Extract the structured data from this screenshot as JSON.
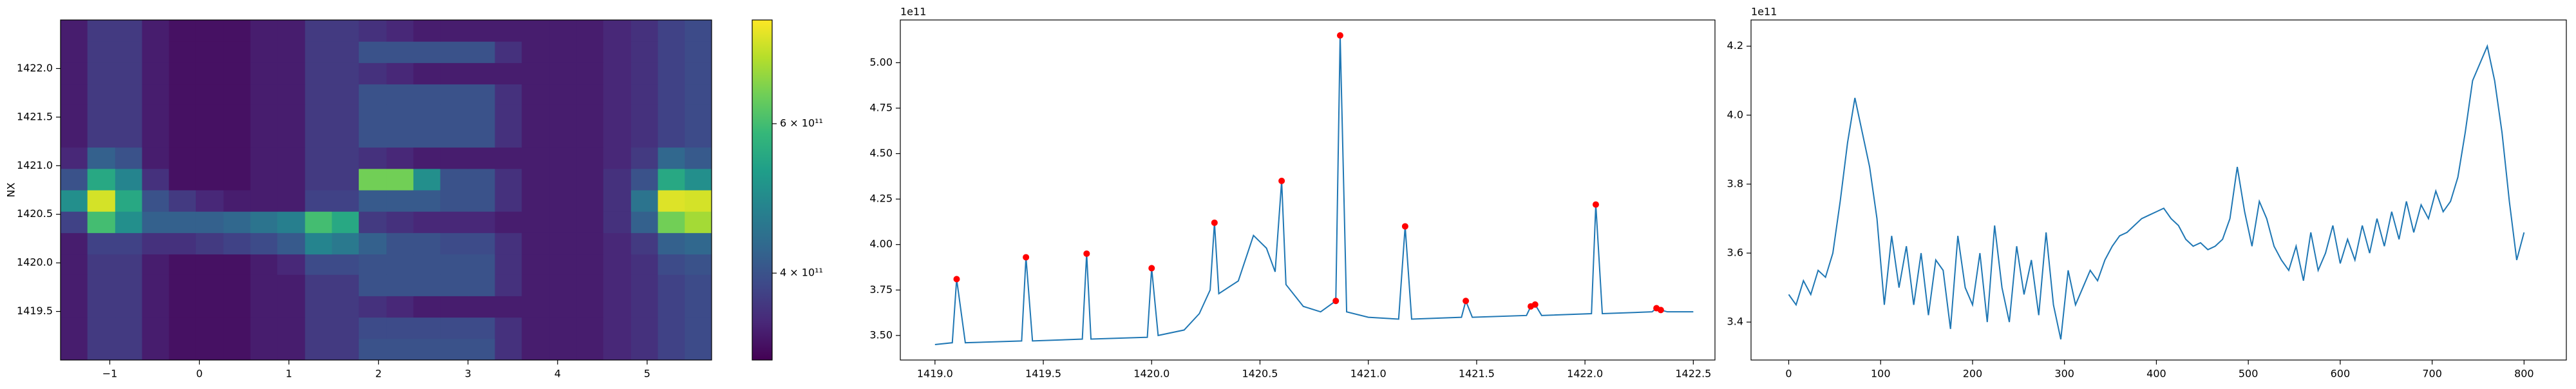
{
  "chart_data": [
    {
      "type": "heatmap",
      "ylabel": "NX",
      "colormap": "viridis",
      "log_color": true,
      "xlim": [
        -1.55,
        5.72
      ],
      "ylim": [
        1419.0,
        1422.5
      ],
      "xticks": [
        {
          "value": -1,
          "label": "−1"
        },
        0,
        1,
        2,
        3,
        4,
        5
      ],
      "yticks": [
        1419.5,
        {
          "value": 1420,
          "label": "1420.0"
        },
        1420.5,
        {
          "value": 1421,
          "label": "1421.0"
        },
        1421.5,
        {
          "value": 1422,
          "label": "1422.0"
        }
      ],
      "clim": [
        316000000000.0,
        795000000000.0
      ],
      "cticks": [
        {
          "value": 400000000000.0,
          "label": "4 × 10¹¹"
        },
        {
          "value": 600000000000.0,
          "label": "6 × 10¹¹"
        }
      ],
      "x_edges": [
        -1.55,
        -1.25,
        -0.94,
        -0.64,
        -0.34,
        -0.04,
        0.27,
        0.57,
        0.87,
        1.18,
        1.48,
        1.78,
        2.09,
        2.39,
        2.69,
        3.0,
        3.3,
        3.6,
        3.91,
        4.21,
        4.51,
        4.82,
        5.12,
        5.42,
        5.72
      ],
      "y_edges": [
        1419.0,
        1419.22,
        1419.44,
        1419.66,
        1419.88,
        1420.09,
        1420.31,
        1420.53,
        1420.75,
        1420.97,
        1421.19,
        1421.41,
        1421.63,
        1421.84,
        1422.06,
        1422.28,
        1422.5
      ],
      "z": [
        [
          340000000000.0,
          370000000000.0,
          370000000000.0,
          340000000000.0,
          330000000000.0,
          330000000000.0,
          330000000000.0,
          340000000000.0,
          340000000000.0,
          370000000000.0,
          370000000000.0,
          400000000000.0,
          400000000000.0,
          400000000000.0,
          400000000000.0,
          400000000000.0,
          360000000000.0,
          340000000000.0,
          340000000000.0,
          340000000000.0,
          350000000000.0,
          360000000000.0,
          380000000000.0,
          390000000000.0
        ],
        [
          340000000000.0,
          370000000000.0,
          370000000000.0,
          340000000000.0,
          330000000000.0,
          330000000000.0,
          330000000000.0,
          340000000000.0,
          340000000000.0,
          370000000000.0,
          370000000000.0,
          390000000000.0,
          390000000000.0,
          390000000000.0,
          390000000000.0,
          390000000000.0,
          360000000000.0,
          340000000000.0,
          340000000000.0,
          340000000000.0,
          350000000000.0,
          360000000000.0,
          380000000000.0,
          390000000000.0
        ],
        [
          340000000000.0,
          370000000000.0,
          370000000000.0,
          340000000000.0,
          330000000000.0,
          330000000000.0,
          330000000000.0,
          340000000000.0,
          340000000000.0,
          370000000000.0,
          370000000000.0,
          360000000000.0,
          350000000000.0,
          340000000000.0,
          340000000000.0,
          340000000000.0,
          340000000000.0,
          340000000000.0,
          340000000000.0,
          340000000000.0,
          350000000000.0,
          360000000000.0,
          380000000000.0,
          390000000000.0
        ],
        [
          340000000000.0,
          370000000000.0,
          370000000000.0,
          340000000000.0,
          330000000000.0,
          330000000000.0,
          330000000000.0,
          340000000000.0,
          340000000000.0,
          370000000000.0,
          370000000000.0,
          400000000000.0,
          400000000000.0,
          400000000000.0,
          400000000000.0,
          400000000000.0,
          360000000000.0,
          340000000000.0,
          340000000000.0,
          340000000000.0,
          350000000000.0,
          360000000000.0,
          380000000000.0,
          390000000000.0
        ],
        [
          340000000000.0,
          370000000000.0,
          370000000000.0,
          340000000000.0,
          330000000000.0,
          330000000000.0,
          330000000000.0,
          340000000000.0,
          350000000000.0,
          390000000000.0,
          390000000000.0,
          400000000000.0,
          400000000000.0,
          400000000000.0,
          400000000000.0,
          400000000000.0,
          360000000000.0,
          340000000000.0,
          340000000000.0,
          340000000000.0,
          350000000000.0,
          360000000000.0,
          390000000000.0,
          400000000000.0
        ],
        [
          340000000000.0,
          380000000000.0,
          380000000000.0,
          360000000000.0,
          360000000000.0,
          370000000000.0,
          380000000000.0,
          390000000000.0,
          410000000000.0,
          480000000000.0,
          460000000000.0,
          420000000000.0,
          400000000000.0,
          400000000000.0,
          390000000000.0,
          390000000000.0,
          360000000000.0,
          340000000000.0,
          340000000000.0,
          340000000000.0,
          350000000000.0,
          370000000000.0,
          420000000000.0,
          430000000000.0
        ],
        [
          380000000000.0,
          600000000000.0,
          500000000000.0,
          420000000000.0,
          420000000000.0,
          420000000000.0,
          430000000000.0,
          450000000000.0,
          470000000000.0,
          600000000000.0,
          550000000000.0,
          370000000000.0,
          360000000000.0,
          350000000000.0,
          350000000000.0,
          350000000000.0,
          340000000000.0,
          340000000000.0,
          340000000000.0,
          340000000000.0,
          360000000000.0,
          420000000000.0,
          650000000000.0,
          700000000000.0
        ],
        [
          500000000000.0,
          750000000000.0,
          550000000000.0,
          400000000000.0,
          370000000000.0,
          350000000000.0,
          340000000000.0,
          340000000000.0,
          340000000000.0,
          380000000000.0,
          380000000000.0,
          410000000000.0,
          410000000000.0,
          410000000000.0,
          400000000000.0,
          400000000000.0,
          360000000000.0,
          340000000000.0,
          340000000000.0,
          340000000000.0,
          360000000000.0,
          450000000000.0,
          760000000000.0,
          750000000000.0
        ],
        [
          400000000000.0,
          550000000000.0,
          480000000000.0,
          360000000000.0,
          330000000000.0,
          330000000000.0,
          330000000000.0,
          340000000000.0,
          340000000000.0,
          370000000000.0,
          370000000000.0,
          650000000000.0,
          650000000000.0,
          500000000000.0,
          400000000000.0,
          400000000000.0,
          360000000000.0,
          340000000000.0,
          340000000000.0,
          340000000000.0,
          360000000000.0,
          400000000000.0,
          550000000000.0,
          500000000000.0
        ],
        [
          350000000000.0,
          420000000000.0,
          400000000000.0,
          340000000000.0,
          330000000000.0,
          330000000000.0,
          330000000000.0,
          340000000000.0,
          340000000000.0,
          370000000000.0,
          370000000000.0,
          360000000000.0,
          350000000000.0,
          340000000000.0,
          340000000000.0,
          340000000000.0,
          340000000000.0,
          340000000000.0,
          340000000000.0,
          340000000000.0,
          350000000000.0,
          370000000000.0,
          430000000000.0,
          410000000000.0
        ],
        [
          340000000000.0,
          370000000000.0,
          370000000000.0,
          340000000000.0,
          330000000000.0,
          330000000000.0,
          330000000000.0,
          340000000000.0,
          340000000000.0,
          370000000000.0,
          370000000000.0,
          400000000000.0,
          400000000000.0,
          400000000000.0,
          400000000000.0,
          400000000000.0,
          360000000000.0,
          340000000000.0,
          340000000000.0,
          340000000000.0,
          350000000000.0,
          360000000000.0,
          380000000000.0,
          390000000000.0
        ],
        [
          340000000000.0,
          370000000000.0,
          370000000000.0,
          340000000000.0,
          330000000000.0,
          330000000000.0,
          330000000000.0,
          340000000000.0,
          340000000000.0,
          370000000000.0,
          370000000000.0,
          400000000000.0,
          400000000000.0,
          400000000000.0,
          400000000000.0,
          400000000000.0,
          360000000000.0,
          340000000000.0,
          340000000000.0,
          340000000000.0,
          350000000000.0,
          360000000000.0,
          380000000000.0,
          390000000000.0
        ],
        [
          340000000000.0,
          370000000000.0,
          370000000000.0,
          340000000000.0,
          330000000000.0,
          330000000000.0,
          330000000000.0,
          340000000000.0,
          340000000000.0,
          370000000000.0,
          370000000000.0,
          400000000000.0,
          400000000000.0,
          400000000000.0,
          400000000000.0,
          400000000000.0,
          360000000000.0,
          340000000000.0,
          340000000000.0,
          340000000000.0,
          350000000000.0,
          360000000000.0,
          380000000000.0,
          390000000000.0
        ],
        [
          340000000000.0,
          370000000000.0,
          370000000000.0,
          340000000000.0,
          330000000000.0,
          330000000000.0,
          330000000000.0,
          340000000000.0,
          340000000000.0,
          370000000000.0,
          370000000000.0,
          360000000000.0,
          350000000000.0,
          340000000000.0,
          340000000000.0,
          340000000000.0,
          340000000000.0,
          340000000000.0,
          340000000000.0,
          340000000000.0,
          350000000000.0,
          360000000000.0,
          380000000000.0,
          390000000000.0
        ],
        [
          340000000000.0,
          370000000000.0,
          370000000000.0,
          340000000000.0,
          330000000000.0,
          330000000000.0,
          330000000000.0,
          340000000000.0,
          340000000000.0,
          370000000000.0,
          370000000000.0,
          400000000000.0,
          400000000000.0,
          400000000000.0,
          400000000000.0,
          400000000000.0,
          360000000000.0,
          340000000000.0,
          340000000000.0,
          340000000000.0,
          350000000000.0,
          360000000000.0,
          380000000000.0,
          390000000000.0
        ],
        [
          340000000000.0,
          370000000000.0,
          370000000000.0,
          340000000000.0,
          330000000000.0,
          330000000000.0,
          330000000000.0,
          340000000000.0,
          340000000000.0,
          370000000000.0,
          370000000000.0,
          360000000000.0,
          350000000000.0,
          340000000000.0,
          340000000000.0,
          340000000000.0,
          340000000000.0,
          340000000000.0,
          340000000000.0,
          340000000000.0,
          350000000000.0,
          360000000000.0,
          380000000000.0,
          390000000000.0
        ]
      ]
    },
    {
      "type": "line",
      "offset_text": "1e11",
      "color": "#1f77b4",
      "xlim": [
        1418.84,
        1422.6
      ],
      "ylim": [
        3.365,
        5.235
      ],
      "xticks": [
        {
          "value": 1419,
          "label": "1419.0"
        },
        1419.5,
        {
          "value": 1420,
          "label": "1420.0"
        },
        1420.5,
        {
          "value": 1421,
          "label": "1421.0"
        },
        1421.5,
        {
          "value": 1422,
          "label": "1422.0"
        },
        1422.5
      ],
      "yticks": [
        {
          "value": 3.5,
          "label": "3.50"
        },
        3.75,
        {
          "value": 4,
          "label": "4.00"
        },
        4.25,
        {
          "value": 4.5,
          "label": "4.50"
        },
        4.75,
        {
          "value": 5,
          "label": "5.00"
        }
      ],
      "x": [
        1419.0,
        1419.08,
        1419.1,
        1419.14,
        1419.4,
        1419.42,
        1419.45,
        1419.68,
        1419.7,
        1419.72,
        1419.98,
        1420.0,
        1420.03,
        1420.15,
        1420.22,
        1420.27,
        1420.29,
        1420.31,
        1420.4,
        1420.47,
        1420.53,
        1420.57,
        1420.6,
        1420.62,
        1420.7,
        1420.78,
        1420.85,
        1420.87,
        1420.9,
        1421.0,
        1421.14,
        1421.17,
        1421.2,
        1421.43,
        1421.45,
        1421.48,
        1421.73,
        1421.75,
        1421.77,
        1421.8,
        1422.03,
        1422.05,
        1422.08,
        1422.31,
        1422.33,
        1422.35,
        1422.38,
        1422.5
      ],
      "values": [
        3.45,
        3.46,
        3.81,
        3.46,
        3.47,
        3.93,
        3.47,
        3.48,
        3.95,
        3.48,
        3.49,
        3.87,
        3.5,
        3.53,
        3.62,
        3.75,
        4.12,
        3.73,
        3.8,
        4.05,
        3.98,
        3.85,
        4.35,
        3.78,
        3.66,
        3.63,
        3.69,
        5.15,
        3.63,
        3.6,
        3.59,
        4.1,
        3.59,
        3.6,
        3.69,
        3.6,
        3.61,
        3.66,
        3.67,
        3.61,
        3.62,
        4.22,
        3.62,
        3.63,
        3.65,
        3.64,
        3.63,
        3.63
      ],
      "markers": {
        "color": "#ff0000",
        "x": [
          1419.1,
          1419.42,
          1419.7,
          1420.0,
          1420.29,
          1420.6,
          1420.85,
          1420.87,
          1421.17,
          1421.45,
          1421.75,
          1421.77,
          1422.05,
          1422.33,
          1422.35
        ],
        "values": [
          3.81,
          3.93,
          3.95,
          3.87,
          4.12,
          4.35,
          3.69,
          5.15,
          4.1,
          3.69,
          3.66,
          3.67,
          4.22,
          3.65,
          3.64
        ]
      }
    },
    {
      "type": "line",
      "offset_text": "1e11",
      "color": "#1f77b4",
      "xlim": [
        -41,
        846
      ],
      "ylim": [
        3.29,
        4.276
      ],
      "xticks": [
        0,
        100,
        200,
        300,
        400,
        500,
        600,
        700,
        800
      ],
      "yticks": [
        3.4,
        3.6,
        3.8,
        {
          "value": 4,
          "label": "4.0"
        },
        4.2
      ],
      "x": [
        0,
        8,
        16,
        24,
        32,
        40,
        48,
        56,
        64,
        72,
        80,
        88,
        96,
        104,
        112,
        120,
        128,
        136,
        144,
        152,
        160,
        168,
        176,
        184,
        192,
        200,
        208,
        216,
        224,
        232,
        240,
        248,
        256,
        264,
        272,
        280,
        288,
        296,
        304,
        312,
        320,
        328,
        336,
        344,
        352,
        360,
        368,
        376,
        384,
        392,
        400,
        408,
        416,
        424,
        432,
        440,
        448,
        456,
        464,
        472,
        480,
        488,
        496,
        504,
        512,
        520,
        528,
        536,
        544,
        552,
        560,
        568,
        576,
        584,
        592,
        600,
        608,
        616,
        624,
        632,
        640,
        648,
        656,
        664,
        672,
        680,
        688,
        696,
        704,
        712,
        720,
        728,
        736,
        744,
        752,
        760,
        768,
        776,
        784,
        792,
        800
      ],
      "values": [
        3.48,
        3.45,
        3.52,
        3.48,
        3.55,
        3.53,
        3.6,
        3.75,
        3.92,
        4.05,
        3.95,
        3.85,
        3.7,
        3.45,
        3.65,
        3.5,
        3.62,
        3.45,
        3.6,
        3.42,
        3.58,
        3.55,
        3.38,
        3.65,
        3.5,
        3.45,
        3.6,
        3.4,
        3.68,
        3.5,
        3.4,
        3.62,
        3.48,
        3.58,
        3.42,
        3.66,
        3.45,
        3.35,
        3.55,
        3.45,
        3.5,
        3.55,
        3.52,
        3.58,
        3.62,
        3.65,
        3.66,
        3.68,
        3.7,
        3.71,
        3.72,
        3.73,
        3.7,
        3.68,
        3.64,
        3.62,
        3.63,
        3.61,
        3.62,
        3.64,
        3.7,
        3.85,
        3.72,
        3.62,
        3.75,
        3.7,
        3.62,
        3.58,
        3.55,
        3.62,
        3.52,
        3.66,
        3.55,
        3.6,
        3.68,
        3.57,
        3.64,
        3.58,
        3.68,
        3.6,
        3.7,
        3.62,
        3.72,
        3.64,
        3.75,
        3.66,
        3.74,
        3.7,
        3.78,
        3.72,
        3.75,
        3.82,
        3.95,
        4.1,
        4.15,
        4.2,
        4.1,
        3.95,
        3.75,
        3.58,
        3.66
      ]
    }
  ]
}
